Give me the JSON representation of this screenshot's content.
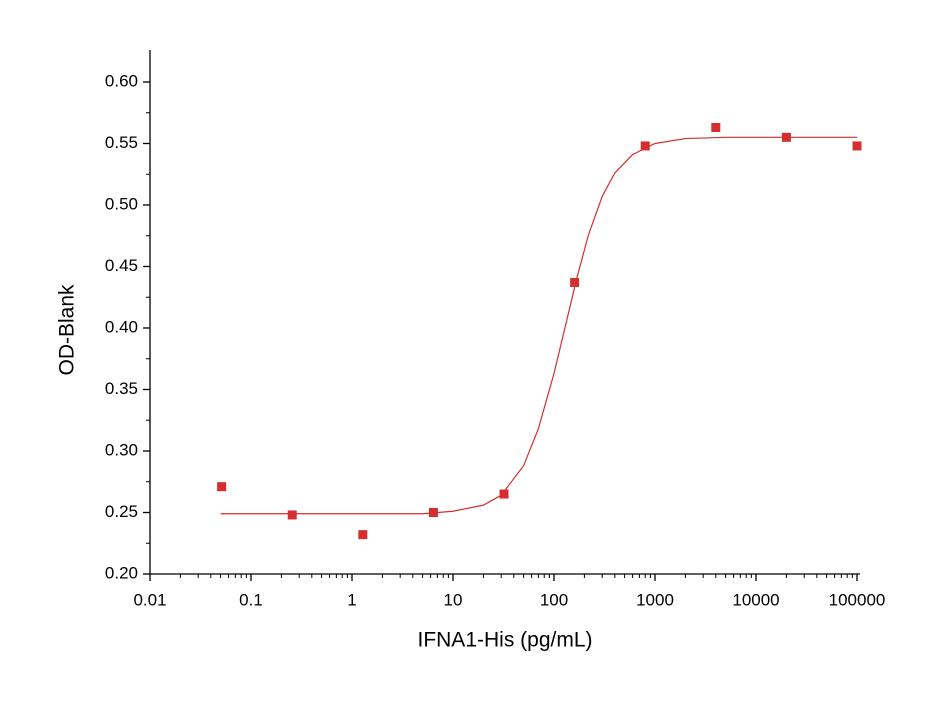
{
  "chart_data": {
    "type": "scatter",
    "x_label": "IFNA1-His (pg/mL)",
    "y_label": "OD-Blank",
    "xscale": "log",
    "xlim": [
      0.01,
      100000
    ],
    "xticks": [
      0.01,
      0.1,
      1,
      10,
      100,
      1000,
      10000,
      100000
    ],
    "ylim": [
      0.2,
      0.626
    ],
    "yticks": [
      {
        "value": 0.2,
        "label": "0.20"
      },
      0.25,
      {
        "value": 0.3,
        "label": "0.30"
      },
      0.35,
      {
        "value": 0.4,
        "label": "0.40"
      },
      0.45,
      {
        "value": 0.5,
        "label": "0.50"
      },
      0.55,
      {
        "value": 0.6,
        "label": "0.60"
      }
    ],
    "points": {
      "color": "#d32f2f",
      "x": [
        0.0512,
        0.256,
        1.28,
        6.4,
        32,
        160,
        800,
        4000,
        20000,
        100000
      ],
      "values": [
        0.271,
        0.248,
        0.232,
        0.25,
        0.265,
        0.437,
        0.548,
        0.563,
        0.555,
        0.548
      ]
    },
    "fit": {
      "color": "#d32f2f",
      "x": [
        0.05,
        1,
        5,
        10,
        20,
        30,
        50,
        70,
        100,
        130,
        170,
        220,
        300,
        400,
        600,
        1000,
        2000,
        5000,
        100000
      ],
      "values": [
        0.249,
        0.249,
        0.249,
        0.251,
        0.256,
        0.264,
        0.288,
        0.318,
        0.363,
        0.402,
        0.442,
        0.476,
        0.507,
        0.526,
        0.541,
        0.55,
        0.554,
        0.555,
        0.555
      ]
    }
  }
}
